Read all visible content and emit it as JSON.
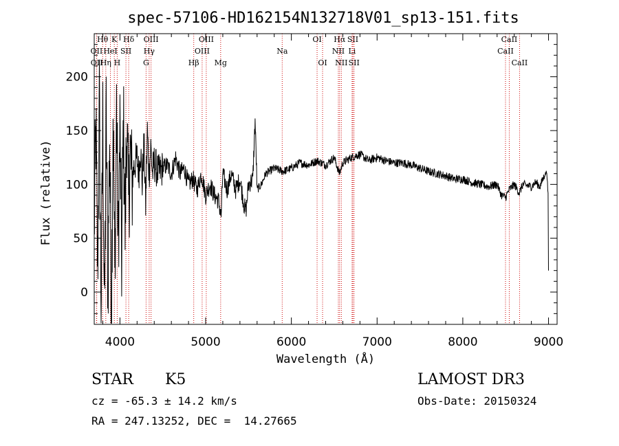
{
  "chart_data": {
    "type": "line",
    "title": "spec-57106-HD162154N132718V01_sp13-151.fits",
    "xlabel": "Wavelength (Å)",
    "ylabel": "Flux (relative)",
    "xlim": [
      3700,
      9100
    ],
    "ylim": [
      -30,
      240
    ],
    "xticks": [
      4000,
      5000,
      6000,
      7000,
      8000,
      9000
    ],
    "yticks": [
      0,
      50,
      100,
      150,
      200
    ],
    "series": [
      {
        "name": "flux",
        "x": [
          3700,
          3720,
          3740,
          3760,
          3780,
          3800,
          3820,
          3840,
          3860,
          3880,
          3900,
          3920,
          3940,
          3960,
          3980,
          4000,
          4020,
          4040,
          4060,
          4080,
          4100,
          4120,
          4140,
          4160,
          4180,
          4200,
          4220,
          4240,
          4260,
          4280,
          4300,
          4320,
          4340,
          4360,
          4380,
          4400,
          4450,
          4500,
          4550,
          4600,
          4650,
          4700,
          4750,
          4800,
          4850,
          4900,
          4950,
          5000,
          5050,
          5100,
          5150,
          5180,
          5200,
          5250,
          5300,
          5350,
          5400,
          5450,
          5470,
          5500,
          5550,
          5577,
          5600,
          5650,
          5700,
          5800,
          5900,
          6000,
          6100,
          6200,
          6300,
          6350,
          6400,
          6500,
          6560,
          6600,
          6700,
          6800,
          6900,
          7000,
          7100,
          7200,
          7300,
          7400,
          7500,
          7600,
          7700,
          7800,
          7900,
          8000,
          8100,
          8200,
          8300,
          8400,
          8450,
          8500,
          8540,
          8600,
          8660,
          8700,
          8800,
          8850,
          8900,
          8950,
          8980,
          8995,
          9000
        ],
        "y": [
          60,
          150,
          20,
          175,
          -20,
          160,
          -25,
          165,
          0,
          150,
          -25,
          170,
          10,
          175,
          40,
          150,
          30,
          160,
          60,
          160,
          80,
          130,
          100,
          115,
          120,
          125,
          110,
          135,
          100,
          140,
          80,
          150,
          110,
          135,
          110,
          120,
          110,
          115,
          118,
          110,
          125,
          110,
          115,
          100,
          105,
          95,
          110,
          90,
          100,
          90,
          85,
          70,
          110,
          95,
          110,
          95,
          105,
          80,
          75,
          100,
          105,
          160,
          95,
          100,
          110,
          115,
          112,
          115,
          120,
          118,
          122,
          120,
          118,
          125,
          110,
          120,
          125,
          128,
          122,
          125,
          122,
          120,
          120,
          118,
          115,
          112,
          110,
          108,
          105,
          105,
          102,
          100,
          98,
          100,
          90,
          88,
          95,
          100,
          92,
          100,
          98,
          102,
          98,
          108,
          112,
          90,
          20
        ]
      }
    ],
    "lines_row1": [
      {
        "label": "Hθ",
        "x": 3798
      },
      {
        "label": "K",
        "x": 3934
      },
      {
        "label": "Hδ",
        "x": 4102
      },
      {
        "label": "OIII",
        "x": 4363
      },
      {
        "label": "OIII",
        "x": 5007
      },
      {
        "label": "OI",
        "x": 6300
      },
      {
        "label": "Hα",
        "x": 6563
      },
      {
        "label": "SII",
        "x": 6717
      },
      {
        "label": "CaII",
        "x": 8542
      }
    ],
    "lines_row2": [
      {
        "label": "OII",
        "x": 3727
      },
      {
        "label": "HeI",
        "x": 3889
      },
      {
        "label": "SII",
        "x": 4070
      },
      {
        "label": "Hγ",
        "x": 4341
      },
      {
        "label": "OIII",
        "x": 4959
      },
      {
        "label": "Na",
        "x": 5893
      },
      {
        "label": "NII",
        "x": 6548
      },
      {
        "label": "Li",
        "x": 6708
      },
      {
        "label": "CaII",
        "x": 8498
      }
    ],
    "lines_row3": [
      {
        "label": "OII",
        "x": 3729
      },
      {
        "label": "Hη",
        "x": 3835
      },
      {
        "label": "H",
        "x": 3968
      },
      {
        "label": "G",
        "x": 4305
      },
      {
        "label": "Hβ",
        "x": 4861
      },
      {
        "label": "Mg",
        "x": 5175
      },
      {
        "label": "OI",
        "x": 6364
      },
      {
        "label": "NII",
        "x": 6583
      },
      {
        "label": "SII",
        "x": 6731
      },
      {
        "label": "CaII",
        "x": 8662
      }
    ]
  },
  "info": {
    "class": "STAR",
    "subclass": "K5",
    "survey": "LAMOST DR3",
    "cz": "cz = -65.3 ± 14.2 km/s",
    "obs_date": "Obs-Date: 20150324",
    "radec": "RA = 247.13252, DEC =  14.27665"
  }
}
